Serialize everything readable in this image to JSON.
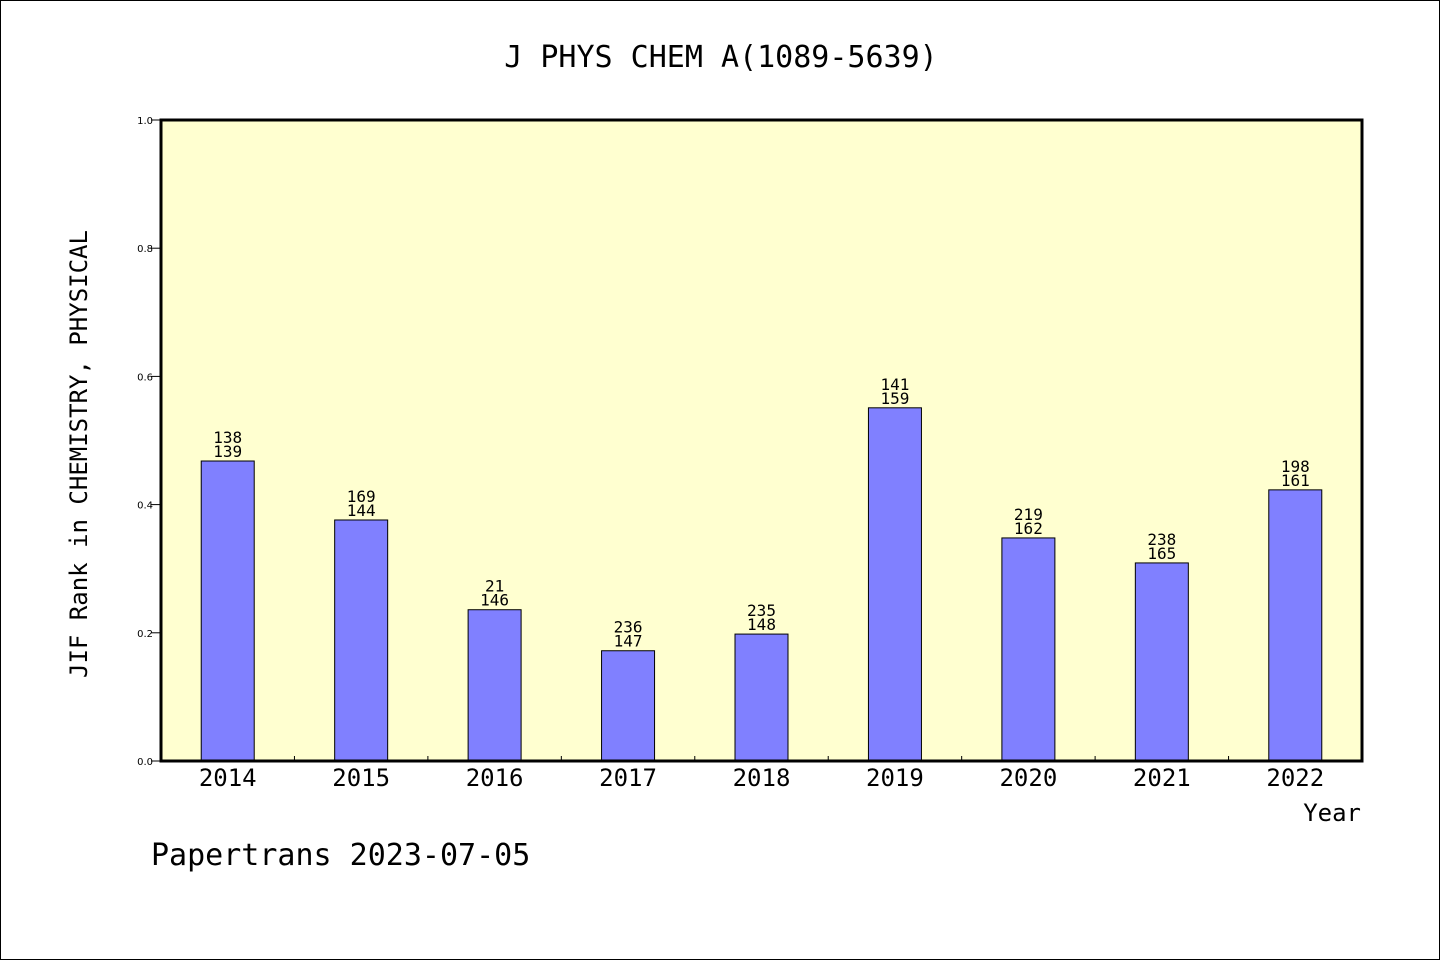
{
  "chart_data": {
    "type": "bar",
    "title": "J PHYS CHEM A(1089-5639)",
    "xlabel": "Year",
    "ylabel": "JIF Rank in CHEMISTRY, PHYSICAL",
    "categories": [
      "2014",
      "2015",
      "2016",
      "2017",
      "2018",
      "2019",
      "2020",
      "2021",
      "2022"
    ],
    "values": [
      0.468,
      0.376,
      0.236,
      0.172,
      0.198,
      0.551,
      0.348,
      0.309,
      0.423
    ],
    "labels_top": [
      "138",
      "169",
      "21",
      "236",
      "235",
      "141",
      "219",
      "238",
      "198"
    ],
    "labels_bottom": [
      "139",
      "144",
      "146",
      "147",
      "148",
      "159",
      "162",
      "165",
      "161"
    ],
    "ylim": [
      0,
      1.0
    ],
    "yticks": [
      "0.0",
      "0.2",
      "0.4",
      "0.6",
      "0.8",
      "1.0"
    ],
    "grid": false,
    "colors": {
      "bar": "#8080ff",
      "plot_bg": "#ffffd0"
    }
  },
  "footer": "Papertrans 2023-07-05"
}
